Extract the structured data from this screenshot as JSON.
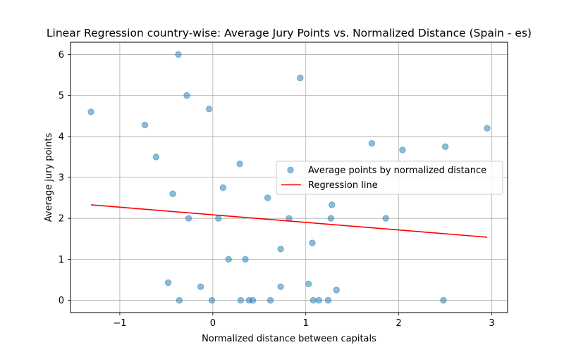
{
  "chart_data": {
    "type": "scatter",
    "title": "Linear Regression country-wise: Average Jury Points vs. Normalized Distance (Spain - es)",
    "xlabel": "Normalized distance between capitals",
    "ylabel": "Average jury points",
    "xlim": [
      -1.53,
      3.17
    ],
    "ylim": [
      -0.3,
      6.3
    ],
    "xticks": [
      -1,
      0,
      1,
      2,
      3
    ],
    "xtick_labels": [
      "−1",
      "0",
      "1",
      "2",
      "3"
    ],
    "yticks": [
      0,
      1,
      2,
      3,
      4,
      5,
      6
    ],
    "ytick_labels": [
      "0",
      "1",
      "2",
      "3",
      "4",
      "5",
      "6"
    ],
    "grid": true,
    "legend_position": "center-right",
    "series": [
      {
        "name": "Average points by normalized distance",
        "type": "scatter",
        "color": "#1f77b4",
        "x": [
          -1.31,
          -0.73,
          -0.61,
          -0.48,
          -0.43,
          -0.37,
          -0.36,
          -0.28,
          -0.26,
          -0.13,
          -0.04,
          -0.01,
          0.06,
          0.11,
          0.17,
          0.29,
          0.3,
          0.35,
          0.39,
          0.43,
          0.59,
          0.62,
          0.73,
          0.73,
          0.82,
          0.94,
          1.03,
          1.07,
          1.08,
          1.14,
          1.24,
          1.27,
          1.28,
          1.33,
          1.71,
          1.86,
          2.04,
          2.48,
          2.5,
          2.95
        ],
        "y": [
          4.6,
          4.28,
          3.5,
          0.43,
          2.6,
          6.0,
          0.0,
          5.0,
          2.0,
          0.33,
          4.67,
          0.0,
          2.0,
          2.75,
          1.0,
          3.33,
          0.0,
          1.0,
          0.0,
          0.0,
          2.5,
          0.0,
          1.25,
          0.33,
          2.0,
          5.43,
          0.4,
          1.4,
          0.0,
          0.0,
          0.0,
          2.0,
          2.33,
          0.25,
          3.83,
          2.0,
          3.67,
          0.0,
          3.75,
          4.2
        ]
      },
      {
        "name": "Regression line",
        "type": "line",
        "color": "#ff0000",
        "x": [
          -1.31,
          2.95
        ],
        "y": [
          2.33,
          1.54
        ]
      }
    ]
  }
}
